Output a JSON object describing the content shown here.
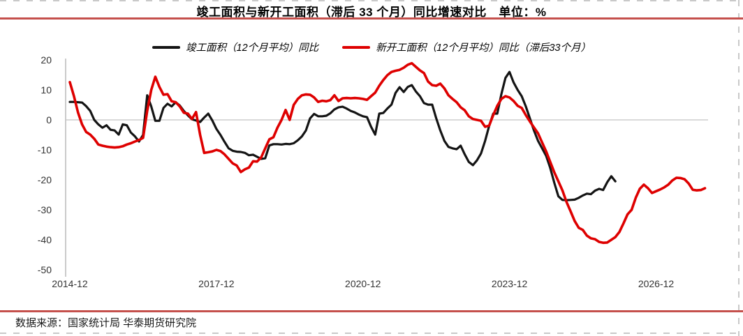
{
  "header": {
    "title": "竣工面积与新开工面积（滞后 33 个月）同比增速对比　单位：%"
  },
  "legend": [
    {
      "label": "竣工面积（12个月平均）同比",
      "color": "#141414"
    },
    {
      "label": "新开工面积（12个月平均）同比（滞后33个月）",
      "color": "#de0000"
    }
  ],
  "footer": {
    "source": "数据来源：国家统计局 华泰期货研究院"
  },
  "colors": {
    "accent_rule": "#c5504c",
    "series_black": "#141414",
    "series_red": "#de0000",
    "axis_line": "#a6a6a6",
    "zero_gridline": "#c4c4c4",
    "tick_text": "#333333"
  },
  "chart_data": {
    "type": "line",
    "title": "竣工面积与新开工面积（滞后 33 个月）同比增速对比",
    "unit": "%",
    "grid": "zero-line-only",
    "legend_position": "top-center",
    "x_axis": {
      "interval": "monthly",
      "ticks": [
        {
          "label": "2014-12",
          "month_index": 0
        },
        {
          "label": "2017-12",
          "month_index": 36
        },
        {
          "label": "2020-12",
          "month_index": 72
        },
        {
          "label": "2023-12",
          "month_index": 108
        },
        {
          "label": "2026-12",
          "month_index": 144
        }
      ]
    },
    "y_axis": {
      "ticks": [
        20,
        10,
        0,
        -10,
        -20,
        -30,
        -40,
        -50
      ],
      "range": [
        -50,
        20
      ],
      "gridline_at": 0
    },
    "series": [
      {
        "name": "竣工面积（12个月平均）同比",
        "color": "#141414",
        "start": "2014-12",
        "end": "2026-02",
        "interval": "monthly",
        "values": [
          6.0,
          6.0,
          5.9,
          5.8,
          4.6,
          3.0,
          0.0,
          -1.5,
          -2.6,
          -1.8,
          -3.3,
          -3.5,
          -4.9,
          -1.5,
          -1.8,
          -4.2,
          -5.5,
          -7.2,
          -5.0,
          8.2,
          4.5,
          -0.3,
          -0.3,
          4.0,
          5.4,
          4.5,
          5.9,
          4.8,
          3.0,
          1.5,
          0.2,
          -0.2,
          -0.7,
          0.8,
          2.1,
          -0.2,
          -3.0,
          -5.0,
          -7.3,
          -9.5,
          -10.3,
          -10.6,
          -10.7,
          -11.0,
          -11.8,
          -11.6,
          -12.3,
          -13.0,
          -12.8,
          -8.5,
          -8.1,
          -8.1,
          -8.2,
          -8.0,
          -8.1,
          -7.8,
          -6.8,
          -5.5,
          -3.5,
          0.5,
          2.0,
          1.2,
          1.2,
          1.4,
          2.2,
          3.5,
          4.2,
          4.4,
          3.8,
          3.0,
          2.5,
          1.8,
          1.2,
          0.9,
          -2.3,
          -4.9,
          2.1,
          2.3,
          3.8,
          5.1,
          9.0,
          10.9,
          9.3,
          11.0,
          11.6,
          9.5,
          7.9,
          5.6,
          5.1,
          5.1,
          0.5,
          -3.5,
          -7.0,
          -9.0,
          -9.5,
          -9.8,
          -8.6,
          -11.5,
          -14.0,
          -15.1,
          -13.5,
          -11.2,
          -7.0,
          -2.0,
          2.1,
          2.1,
          8.6,
          14.0,
          16.0,
          12.5,
          10.0,
          7.9,
          4.5,
          0.5,
          -3.5,
          -7.0,
          -9.5,
          -12.0,
          -16.0,
          -21.0,
          -25.5,
          -26.7,
          -26.8,
          -26.7,
          -26.6,
          -26.0,
          -25.2,
          -24.6,
          -24.8,
          -23.6,
          -23.0,
          -23.4,
          -20.8,
          -18.8,
          -20.5
        ]
      },
      {
        "name": "新开工面积（12个月平均）同比（滞后33个月）",
        "color": "#de0000",
        "start": "2014-12",
        "end": "2027-12",
        "interval": "monthly",
        "values": [
          12.6,
          8.0,
          2.5,
          -1.5,
          -4.0,
          -4.9,
          -6.3,
          -8.2,
          -8.6,
          -8.9,
          -9.1,
          -9.2,
          -9.1,
          -8.8,
          -8.2,
          -7.8,
          -7.2,
          -6.7,
          -6.0,
          3.0,
          10.0,
          14.4,
          11.0,
          8.4,
          8.6,
          6.2,
          5.9,
          4.5,
          2.4,
          2.1,
          0.3,
          2.6,
          -5.0,
          -11.0,
          -10.8,
          -10.5,
          -10.0,
          -10.4,
          -11.5,
          -13.0,
          -14.5,
          -15.2,
          -17.4,
          -16.5,
          -15.9,
          -13.8,
          -13.9,
          -12.5,
          -9.5,
          -6.5,
          -5.8,
          -2.6,
          0.0,
          3.3,
          0.0,
          5.0,
          7.0,
          8.2,
          8.5,
          8.4,
          7.5,
          6.0,
          6.4,
          6.2,
          6.6,
          8.2,
          6.3,
          7.2,
          7.3,
          7.2,
          7.3,
          7.2,
          7.0,
          6.7,
          7.9,
          9.1,
          11.4,
          13.3,
          14.9,
          16.0,
          16.4,
          16.7,
          17.4,
          18.4,
          18.9,
          17.7,
          16.5,
          15.6,
          12.8,
          11.6,
          11.4,
          12.1,
          10.5,
          8.2,
          7.0,
          5.9,
          4.2,
          3.2,
          1.2,
          0.3,
          0.0,
          -0.3,
          -2.3,
          -1.9,
          1.6,
          4.7,
          7.0,
          7.9,
          7.5,
          6.3,
          4.7,
          4.0,
          1.6,
          -0.5,
          -2.5,
          -4.5,
          -7.5,
          -10.5,
          -14.0,
          -17.5,
          -20.5,
          -23.5,
          -27.4,
          -30.5,
          -33.7,
          -36.0,
          -36.7,
          -38.6,
          -39.5,
          -39.8,
          -40.7,
          -41.0,
          -40.9,
          -40.0,
          -39.1,
          -37.4,
          -34.5,
          -31.5,
          -30.0,
          -26.0,
          -23.0,
          -21.6,
          -22.8,
          -24.4,
          -23.8,
          -23.2,
          -22.5,
          -21.6,
          -20.2,
          -19.3,
          -19.4,
          -19.8,
          -21.2,
          -23.3,
          -23.5,
          -23.4,
          -22.8
        ]
      }
    ]
  }
}
